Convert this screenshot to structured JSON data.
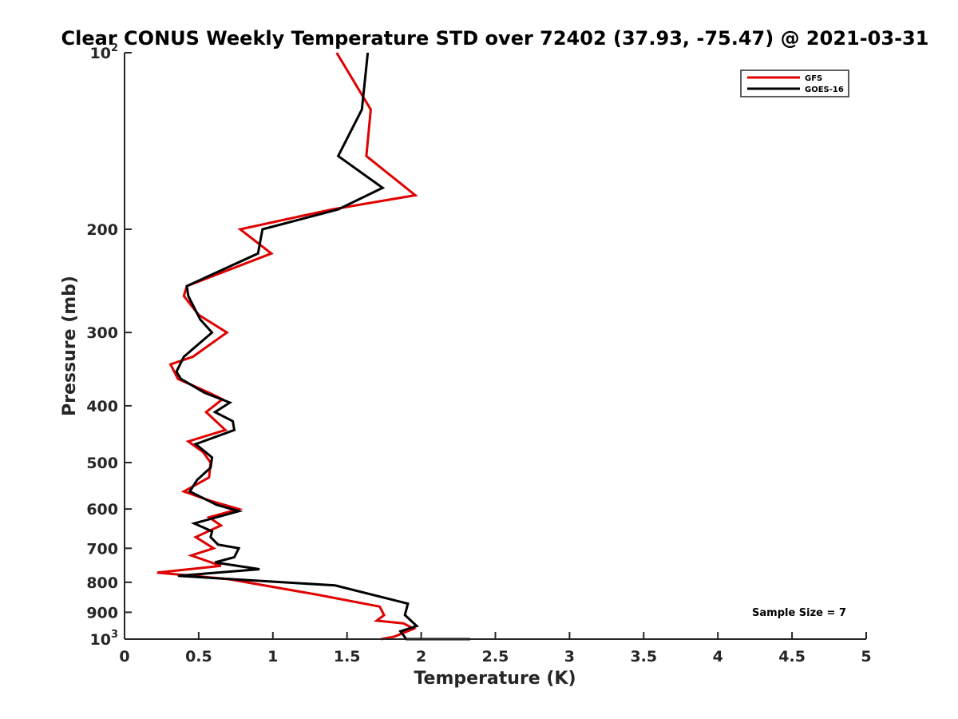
{
  "chart_data": {
    "type": "line",
    "title": "Clear CONUS Weekly Temperature STD over 72402 (37.93, -75.47) @ 2021-03-31",
    "xlabel": "Temperature (K)",
    "ylabel": "Pressure (mb)",
    "xlim": [
      0,
      5
    ],
    "ylim": [
      100,
      1000
    ],
    "y_scale": "log",
    "y_reversed": true,
    "grid": false,
    "legend_position": "top-right",
    "x_ticks": [
      {
        "value": 0,
        "label": "0"
      },
      {
        "value": 0.5,
        "label": "0.5"
      },
      {
        "value": 1,
        "label": "1"
      },
      {
        "value": 1.5,
        "label": "1.5"
      },
      {
        "value": 2,
        "label": "2"
      },
      {
        "value": 2.5,
        "label": "2.5"
      },
      {
        "value": 3,
        "label": "3"
      },
      {
        "value": 3.5,
        "label": "3.5"
      },
      {
        "value": 4,
        "label": "4"
      },
      {
        "value": 4.5,
        "label": "4.5"
      },
      {
        "value": 5,
        "label": "5"
      }
    ],
    "y_ticks": [
      {
        "value": 100,
        "label": "10",
        "sup": "2"
      },
      {
        "value": 200,
        "label": "200"
      },
      {
        "value": 300,
        "label": "300"
      },
      {
        "value": 400,
        "label": "400"
      },
      {
        "value": 500,
        "label": "500"
      },
      {
        "value": 600,
        "label": "600"
      },
      {
        "value": 700,
        "label": "700"
      },
      {
        "value": 800,
        "label": "800"
      },
      {
        "value": 900,
        "label": "900"
      },
      {
        "value": 1000,
        "label": "10",
        "sup": "3"
      }
    ],
    "annotation": "Sample Size = 7",
    "series": [
      {
        "name": "GFS",
        "color": "#e00000",
        "points": [
          [
            1.43,
            100
          ],
          [
            1.66,
            125
          ],
          [
            1.63,
            150
          ],
          [
            1.96,
            175
          ],
          [
            1.4,
            185
          ],
          [
            0.78,
            200
          ],
          [
            0.99,
            220
          ],
          [
            0.42,
            250
          ],
          [
            0.4,
            260
          ],
          [
            0.5,
            280
          ],
          [
            0.69,
            300
          ],
          [
            0.46,
            330
          ],
          [
            0.31,
            340
          ],
          [
            0.36,
            360
          ],
          [
            0.57,
            380
          ],
          [
            0.66,
            390
          ],
          [
            0.55,
            410
          ],
          [
            0.68,
            440
          ],
          [
            0.43,
            460
          ],
          [
            0.53,
            480
          ],
          [
            0.58,
            500
          ],
          [
            0.57,
            530
          ],
          [
            0.4,
            560
          ],
          [
            0.57,
            580
          ],
          [
            0.77,
            600
          ],
          [
            0.57,
            620
          ],
          [
            0.65,
            640
          ],
          [
            0.48,
            670
          ],
          [
            0.6,
            700
          ],
          [
            0.45,
            720
          ],
          [
            0.65,
            750
          ],
          [
            0.22,
            770
          ],
          [
            0.7,
            790
          ],
          [
            1.3,
            840
          ],
          [
            1.72,
            880
          ],
          [
            1.75,
            910
          ],
          [
            1.7,
            930
          ],
          [
            1.88,
            940
          ],
          [
            1.95,
            960
          ],
          [
            1.82,
            990
          ],
          [
            1.73,
            1000
          ]
        ]
      },
      {
        "name": "GOES-16",
        "color": "#000000",
        "points": [
          [
            1.64,
            100
          ],
          [
            1.6,
            125
          ],
          [
            1.44,
            150
          ],
          [
            1.74,
            170
          ],
          [
            1.44,
            185
          ],
          [
            0.93,
            200
          ],
          [
            0.9,
            220
          ],
          [
            0.42,
            250
          ],
          [
            0.43,
            260
          ],
          [
            0.51,
            285
          ],
          [
            0.59,
            300
          ],
          [
            0.4,
            330
          ],
          [
            0.35,
            350
          ],
          [
            0.38,
            360
          ],
          [
            0.54,
            380
          ],
          [
            0.71,
            395
          ],
          [
            0.61,
            410
          ],
          [
            0.73,
            425
          ],
          [
            0.74,
            440
          ],
          [
            0.48,
            465
          ],
          [
            0.59,
            490
          ],
          [
            0.58,
            510
          ],
          [
            0.49,
            535
          ],
          [
            0.44,
            560
          ],
          [
            0.62,
            590
          ],
          [
            0.77,
            605
          ],
          [
            0.47,
            635
          ],
          [
            0.59,
            655
          ],
          [
            0.58,
            670
          ],
          [
            0.63,
            690
          ],
          [
            0.77,
            700
          ],
          [
            0.74,
            725
          ],
          [
            0.61,
            740
          ],
          [
            0.91,
            760
          ],
          [
            0.36,
            780
          ],
          [
            1.42,
            810
          ],
          [
            1.91,
            870
          ],
          [
            1.89,
            910
          ],
          [
            1.97,
            950
          ],
          [
            1.86,
            970
          ],
          [
            1.9,
            1000
          ],
          [
            2.33,
            1000
          ]
        ]
      }
    ]
  }
}
